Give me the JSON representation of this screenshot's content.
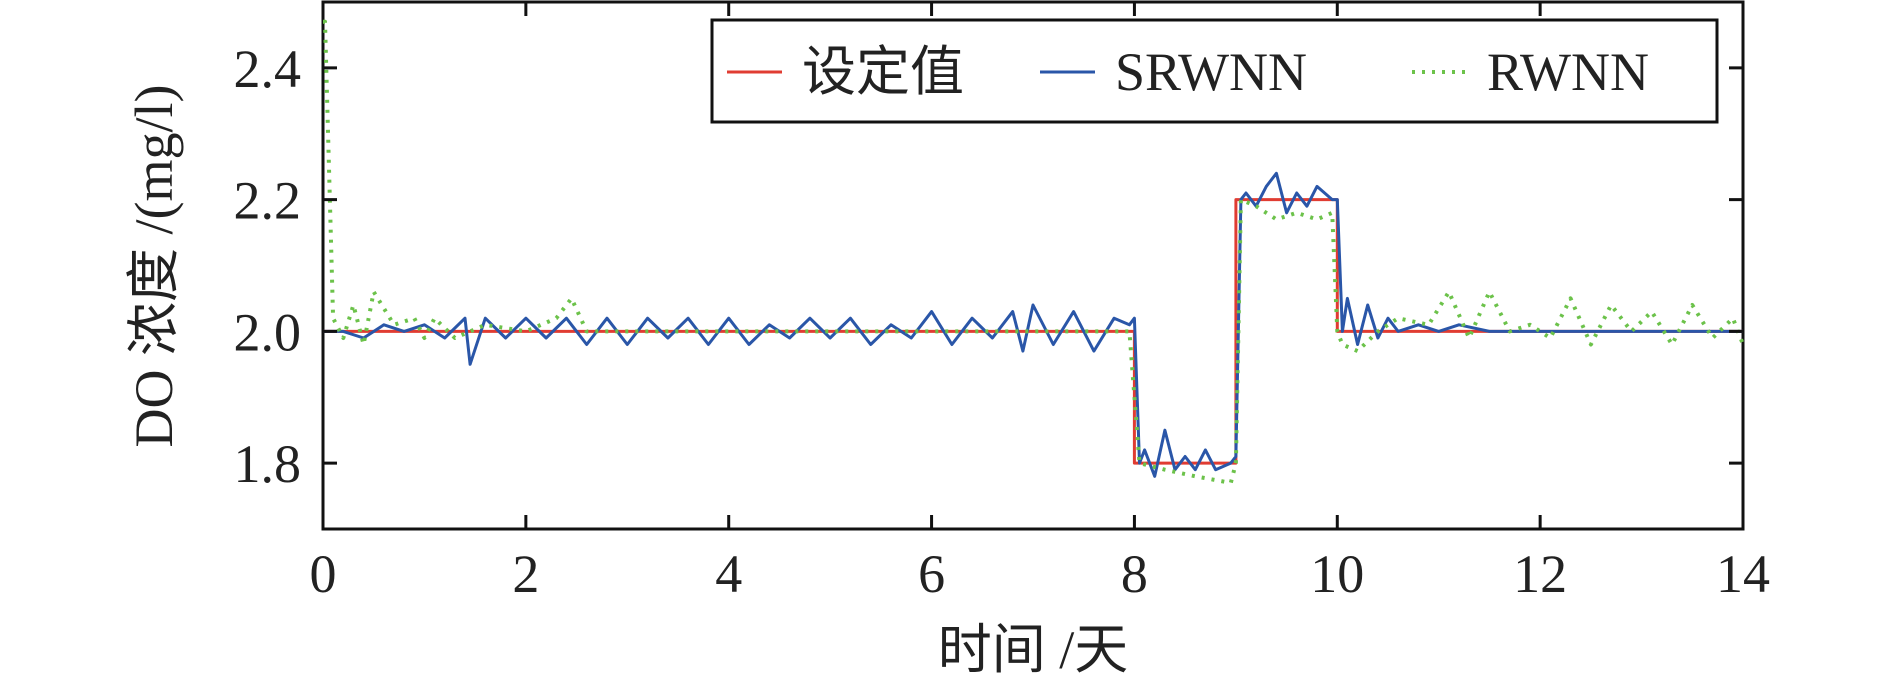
{
  "chart_data": {
    "type": "line",
    "xlabel": "时间 /天",
    "ylabel": "DO 浓度 /(mg/l)",
    "xlim": [
      0,
      14
    ],
    "ylim": [
      1.7,
      2.5
    ],
    "xticks": [
      0,
      2,
      4,
      6,
      8,
      10,
      12,
      14
    ],
    "xtick_labels": [
      "0",
      "2",
      "4",
      "6",
      "8",
      "10",
      "12",
      "14"
    ],
    "yticks": [
      1.8,
      2.0,
      2.2,
      2.4
    ],
    "ytick_labels": [
      "1.8",
      "2.0",
      "2.2",
      "2.4"
    ],
    "grid": false,
    "legend_position": "top-right",
    "series": [
      {
        "name": "设定值",
        "color": "#e03c32",
        "style": "solid",
        "x": [
          0,
          8,
          8,
          9,
          9,
          10,
          10,
          14
        ],
        "y": [
          2.0,
          2.0,
          1.8,
          1.8,
          2.2,
          2.2,
          2.0,
          2.0
        ]
      },
      {
        "name": "SRWNN",
        "color": "#2a56a8",
        "style": "solid",
        "x": [
          0.0,
          0.2,
          0.4,
          0.6,
          0.8,
          1.0,
          1.2,
          1.4,
          1.45,
          1.6,
          1.8,
          2.0,
          2.2,
          2.4,
          2.6,
          2.8,
          3.0,
          3.2,
          3.4,
          3.6,
          3.8,
          4.0,
          4.2,
          4.4,
          4.6,
          4.8,
          5.0,
          5.2,
          5.4,
          5.6,
          5.8,
          6.0,
          6.2,
          6.4,
          6.6,
          6.8,
          6.9,
          7.0,
          7.2,
          7.4,
          7.6,
          7.8,
          7.95,
          8.0,
          8.05,
          8.1,
          8.2,
          8.3,
          8.4,
          8.5,
          8.6,
          8.7,
          8.8,
          8.95,
          9.0,
          9.05,
          9.1,
          9.2,
          9.3,
          9.4,
          9.5,
          9.6,
          9.7,
          9.8,
          9.95,
          10.0,
          10.05,
          10.1,
          10.2,
          10.3,
          10.4,
          10.5,
          10.6,
          10.8,
          11.0,
          11.2,
          11.5,
          12.0,
          12.5,
          13.0,
          13.5,
          14.0
        ],
        "y": [
          2.0,
          2.0,
          1.99,
          2.01,
          2.0,
          2.01,
          1.99,
          2.02,
          1.95,
          2.02,
          1.99,
          2.02,
          1.99,
          2.02,
          1.98,
          2.02,
          1.98,
          2.02,
          1.99,
          2.02,
          1.98,
          2.02,
          1.98,
          2.01,
          1.99,
          2.02,
          1.99,
          2.02,
          1.98,
          2.01,
          1.99,
          2.03,
          1.98,
          2.02,
          1.99,
          2.03,
          1.97,
          2.04,
          1.98,
          2.03,
          1.97,
          2.02,
          2.01,
          2.02,
          1.8,
          1.82,
          1.78,
          1.85,
          1.79,
          1.81,
          1.79,
          1.82,
          1.79,
          1.8,
          1.81,
          2.2,
          2.21,
          2.19,
          2.22,
          2.24,
          2.18,
          2.21,
          2.19,
          2.22,
          2.2,
          2.2,
          2.0,
          2.05,
          1.98,
          2.04,
          1.99,
          2.02,
          2.0,
          2.01,
          2.0,
          2.01,
          2.0,
          2.0,
          2.0,
          2.0,
          2.0,
          2.0
        ]
      },
      {
        "name": "RWNN",
        "color": "#6cc24a",
        "style": "dotted",
        "x": [
          0.0,
          0.02,
          0.1,
          0.2,
          0.3,
          0.4,
          0.5,
          0.7,
          0.9,
          1.0,
          1.1,
          1.3,
          1.6,
          2.0,
          2.3,
          2.45,
          2.6,
          3.0,
          4.0,
          5.0,
          6.0,
          7.0,
          7.9,
          7.95,
          8.05,
          8.3,
          8.6,
          8.95,
          9.0,
          9.05,
          9.2,
          9.4,
          9.6,
          9.8,
          9.95,
          10.0,
          10.05,
          10.2,
          10.4,
          10.6,
          10.9,
          11.1,
          11.3,
          11.5,
          11.7,
          11.9,
          12.1,
          12.3,
          12.5,
          12.7,
          12.9,
          13.1,
          13.3,
          13.5,
          13.7,
          13.9,
          14.0
        ],
        "y": [
          2.47,
          2.47,
          2.02,
          1.99,
          2.04,
          1.98,
          2.06,
          2.01,
          2.02,
          1.99,
          2.02,
          1.99,
          2.01,
          2.0,
          2.02,
          2.05,
          2.0,
          2.0,
          2.0,
          2.0,
          2.0,
          2.0,
          2.0,
          2.0,
          1.8,
          1.79,
          1.78,
          1.77,
          1.8,
          2.2,
          2.19,
          2.17,
          2.18,
          2.17,
          2.18,
          2.0,
          1.98,
          1.97,
          2.0,
          2.02,
          2.01,
          2.06,
          1.99,
          2.06,
          2.0,
          2.01,
          1.99,
          2.05,
          1.98,
          2.04,
          2.0,
          2.03,
          1.98,
          2.04,
          1.99,
          2.02,
          1.98
        ]
      }
    ]
  }
}
